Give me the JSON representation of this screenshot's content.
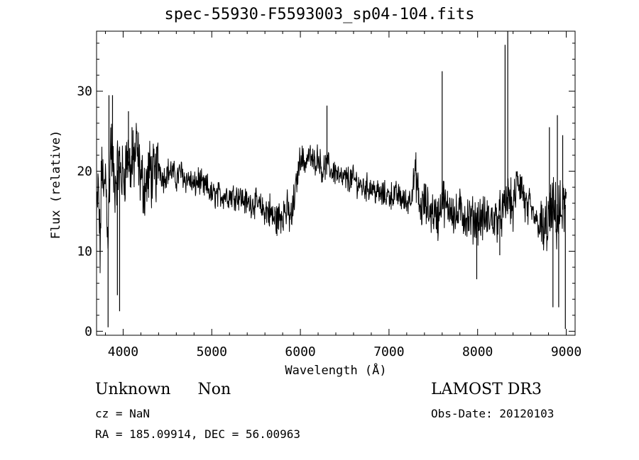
{
  "chart_data": {
    "type": "line",
    "title": "spec-55930-F5593003_sp04-104.fits",
    "xlabel": "Wavelength (Å)",
    "ylabel": "Flux (relative)",
    "xlim": [
      3700,
      9100
    ],
    "ylim": [
      -0.5,
      37.5
    ],
    "x_ticks": [
      4000,
      5000,
      6000,
      7000,
      8000,
      9000
    ],
    "y_ticks": [
      0,
      10,
      20,
      30
    ],
    "grid": false,
    "series": [
      {
        "color": "#000000",
        "x": [
          3700,
          3720,
          3740,
          3760,
          3780,
          3800,
          3830,
          3860,
          3900,
          3950,
          4000,
          4050,
          4100,
          4150,
          4200,
          4250,
          4300,
          4350,
          4400,
          4450,
          4500,
          4550,
          4600,
          4650,
          4700,
          4750,
          4800,
          4850,
          4900,
          4950,
          5000,
          5100,
          5200,
          5300,
          5400,
          5500,
          5600,
          5650,
          5700,
          5750,
          5800,
          5850,
          5900,
          5950,
          6000,
          6050,
          6100,
          6150,
          6200,
          6250,
          6300,
          6350,
          6400,
          6450,
          6500,
          6600,
          6700,
          6800,
          6900,
          7000,
          7100,
          7200,
          7250,
          7300,
          7350,
          7400,
          7450,
          7500,
          7550,
          7600,
          7650,
          7700,
          7750,
          7800,
          7900,
          8000,
          8100,
          8200,
          8300,
          8350,
          8400,
          8450,
          8500,
          8550,
          8600,
          8650,
          8700,
          8750,
          8800,
          8850,
          8900,
          8950,
          9000
        ],
        "y": [
          14,
          18,
          10,
          22,
          16,
          20,
          12,
          24,
          18,
          21,
          19,
          22,
          20,
          23,
          19,
          18,
          20,
          19,
          21,
          19,
          20,
          20,
          19,
          20,
          19,
          19,
          18,
          19,
          18,
          18,
          17,
          17,
          17,
          17,
          16,
          16,
          15,
          15,
          14,
          14,
          15,
          15,
          14,
          18,
          22,
          21,
          22,
          21,
          22,
          20,
          21,
          20,
          20,
          19,
          19,
          19,
          18,
          18,
          17,
          17,
          17,
          16,
          17,
          20,
          15,
          16,
          15,
          15,
          14,
          17,
          15,
          16,
          14,
          15,
          14,
          14,
          14,
          14,
          15,
          17,
          15,
          19,
          18,
          15,
          15,
          14,
          13,
          12,
          14,
          15,
          14,
          15,
          16
        ]
      }
    ],
    "spikes": [
      {
        "x": 3840,
        "y": 29.5
      },
      {
        "x": 3880,
        "y": 29.5
      },
      {
        "x": 3830,
        "y": 0.5
      },
      {
        "x": 3935,
        "y": 4.5
      },
      {
        "x": 3960,
        "y": 2.5
      },
      {
        "x": 4060,
        "y": 27.5
      },
      {
        "x": 4100,
        "y": 25.5
      },
      {
        "x": 6300,
        "y": 28.2
      },
      {
        "x": 7600,
        "y": 32.5
      },
      {
        "x": 7990,
        "y": 6.5
      },
      {
        "x": 8310,
        "y": 35.8
      },
      {
        "x": 8340,
        "y": 37.5
      },
      {
        "x": 8250,
        "y": 9.5
      },
      {
        "x": 8810,
        "y": 25.5
      },
      {
        "x": 8850,
        "y": 3.0
      },
      {
        "x": 8900,
        "y": 27.0
      },
      {
        "x": 8915,
        "y": 3.0
      },
      {
        "x": 8960,
        "y": 24.5
      },
      {
        "x": 8990,
        "y": 0.3
      }
    ]
  },
  "info": {
    "class_name": "Unknown",
    "subclass": "Non",
    "cz": "cz = NaN",
    "radec": "RA = 185.09914, DEC =  56.00963",
    "survey": "LAMOST DR3",
    "obs_date": "Obs-Date: 20120103"
  }
}
